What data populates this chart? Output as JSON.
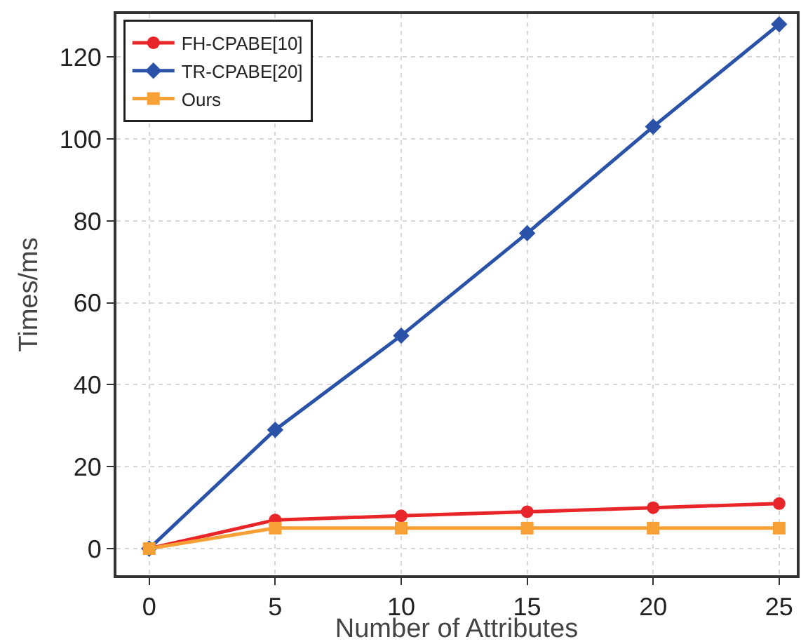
{
  "chart_data": {
    "type": "line",
    "xlabel": "Number of Attributes",
    "ylabel": "Times/ms",
    "x": [
      0,
      5,
      10,
      15,
      20,
      25
    ],
    "series": [
      {
        "name": "FH-CPABE[10]",
        "color": "#e8262a",
        "values": [
          0,
          7,
          8,
          9,
          10,
          11
        ],
        "marker": "circle"
      },
      {
        "name": "TR-CPABE[20]",
        "color": "#2952a8",
        "values": [
          0,
          29,
          52,
          77,
          103,
          128
        ],
        "marker": "diamond"
      },
      {
        "name": "Ours",
        "color": "#f7a035",
        "values": [
          0,
          5,
          5,
          5,
          5,
          5
        ],
        "marker": "square"
      }
    ],
    "xlim": [
      -1.3,
      25.7
    ],
    "xticks": [
      0,
      5,
      10,
      15,
      20,
      25
    ],
    "ylim": [
      -6.5,
      130.5
    ],
    "yticks": [
      0,
      20,
      40,
      60,
      80,
      100,
      120
    ],
    "grid": true,
    "legend": "top left",
    "line_style": "solid"
  }
}
